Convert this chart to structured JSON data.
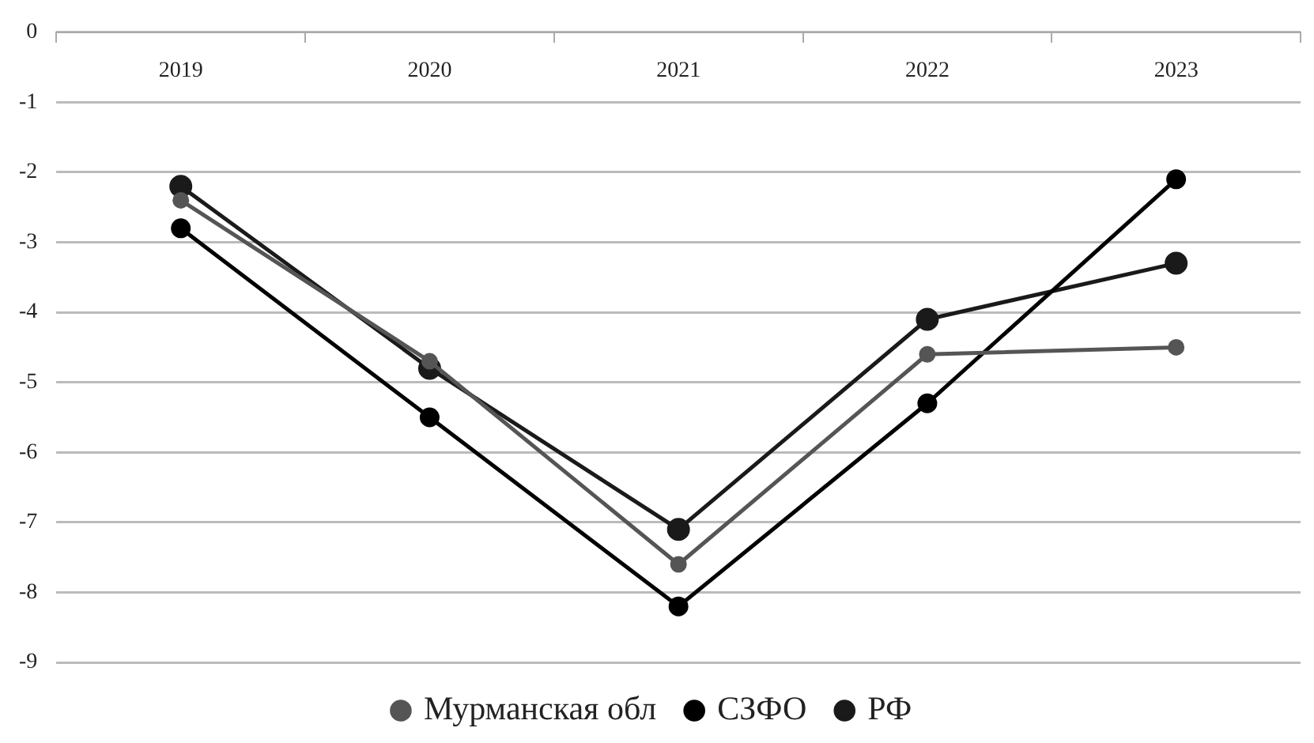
{
  "chart_data": {
    "type": "line",
    "categories": [
      "2019",
      "2020",
      "2021",
      "2022",
      "2023"
    ],
    "series": [
      {
        "name": "Мурманская обл",
        "color": "#555555",
        "values": [
          -2.4,
          -4.7,
          -7.6,
          -4.6,
          -4.5
        ]
      },
      {
        "name": "СЗФО",
        "color": "#000000",
        "values": [
          -2.8,
          -5.5,
          -8.2,
          -5.3,
          -2.1
        ]
      },
      {
        "name": "РФ",
        "color": "#1a1a1a",
        "values": [
          -2.2,
          -4.8,
          -7.1,
          -4.1,
          -3.3
        ]
      }
    ],
    "ylim": [
      -9,
      0
    ],
    "yticks": [
      -9,
      -8,
      -7,
      -6,
      -5,
      -4,
      -3,
      -2,
      -1,
      0
    ],
    "grid": "y",
    "legend": "bottom",
    "marker": "circle",
    "line_style": "solid"
  }
}
